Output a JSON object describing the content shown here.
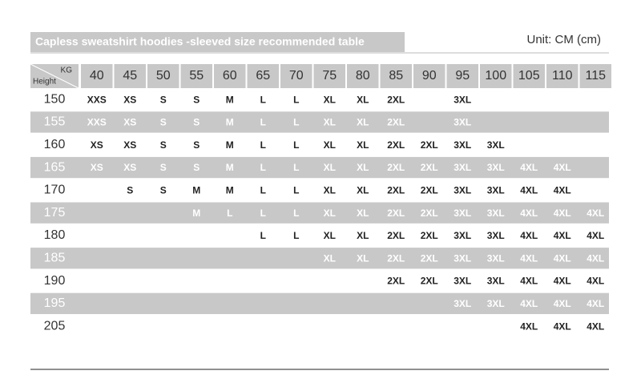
{
  "header": {
    "title": "Capless sweatshirt hoodies -sleeved size recommended table",
    "unit": "Unit: CM (cm)"
  },
  "table": {
    "corner": {
      "top": "KG",
      "bottom": "Height"
    },
    "columns": [
      40,
      45,
      50,
      55,
      60,
      65,
      70,
      75,
      80,
      85,
      90,
      95,
      100,
      105,
      110,
      115
    ],
    "rows": [
      {
        "height": 150,
        "cells": [
          "XXS",
          "XS",
          "S",
          "S",
          "M",
          "L",
          "L",
          "XL",
          "XL",
          "2XL",
          null,
          "3XL",
          null,
          null,
          null,
          null
        ]
      },
      {
        "height": 155,
        "cells": [
          "XXS",
          "XS",
          "S",
          "S",
          "M",
          "L",
          "L",
          "XL",
          "XL",
          "2XL",
          null,
          "3XL",
          null,
          null,
          null,
          null
        ]
      },
      {
        "height": 160,
        "cells": [
          "XS",
          "XS",
          "S",
          "S",
          "M",
          "L",
          "L",
          "XL",
          "XL",
          "2XL",
          "2XL",
          "3XL",
          "3XL",
          null,
          null,
          null
        ]
      },
      {
        "height": 165,
        "cells": [
          "XS",
          "XS",
          "S",
          "S",
          "M",
          "L",
          "L",
          "XL",
          "XL",
          "2XL",
          "2XL",
          "3XL",
          "3XL",
          "4XL",
          "4XL",
          null
        ]
      },
      {
        "height": 170,
        "cells": [
          null,
          "S",
          "S",
          "M",
          "M",
          "L",
          "L",
          "XL",
          "XL",
          "2XL",
          "2XL",
          "3XL",
          "3XL",
          "4XL",
          "4XL",
          null
        ]
      },
      {
        "height": 175,
        "cells": [
          null,
          null,
          null,
          "M",
          "L",
          "L",
          "L",
          "XL",
          "XL",
          "2XL",
          "2XL",
          "3XL",
          "3XL",
          "4XL",
          "4XL",
          "4XL"
        ]
      },
      {
        "height": 180,
        "cells": [
          null,
          null,
          null,
          null,
          null,
          "L",
          "L",
          "XL",
          "XL",
          "2XL",
          "2XL",
          "3XL",
          "3XL",
          "4XL",
          "4XL",
          "4XL"
        ]
      },
      {
        "height": 185,
        "cells": [
          null,
          null,
          null,
          null,
          null,
          null,
          null,
          "XL",
          "XL",
          "2XL",
          "2XL",
          "3XL",
          "3XL",
          "4XL",
          "4XL",
          "4XL"
        ]
      },
      {
        "height": 190,
        "cells": [
          null,
          null,
          null,
          null,
          null,
          null,
          null,
          null,
          null,
          "2XL",
          "2XL",
          "3XL",
          "3XL",
          "4XL",
          "4XL",
          "4XL"
        ]
      },
      {
        "height": 195,
        "cells": [
          null,
          null,
          null,
          null,
          null,
          null,
          null,
          null,
          null,
          null,
          null,
          "3XL",
          "3XL",
          "4XL",
          "4XL",
          "4XL"
        ]
      },
      {
        "height": 205,
        "cells": [
          null,
          null,
          null,
          null,
          null,
          null,
          null,
          null,
          null,
          null,
          null,
          null,
          null,
          "4XL",
          "4XL",
          "4XL"
        ]
      }
    ]
  }
}
